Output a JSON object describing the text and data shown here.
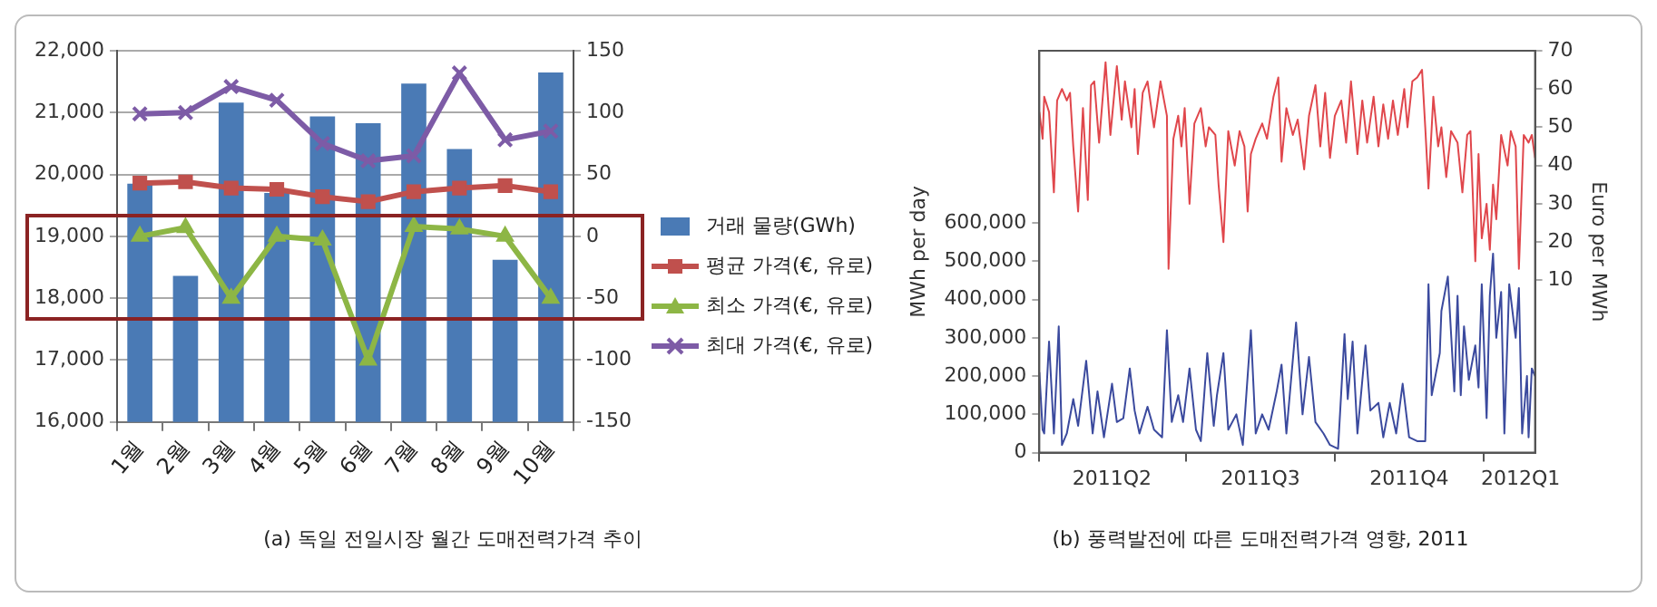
{
  "chart_data": [
    {
      "type": "bar",
      "categories": [
        "1월",
        "2월",
        "3월",
        "4월",
        "5월",
        "6월",
        "7월",
        "8월",
        "9월",
        "10월"
      ],
      "series": [
        {
          "name": "거래 물량(GWh)",
          "type": "bar",
          "color": "#4a7ab5",
          "values": [
            19850,
            18360,
            21160,
            19700,
            20940,
            20830,
            21470,
            20410,
            18620,
            21650
          ]
        },
        {
          "name": "평균 가격(€, 유로)",
          "type": "line",
          "axis": "y2",
          "marker": "square",
          "color": "#c0504d",
          "values": [
            43,
            44,
            39,
            38,
            32,
            28,
            36,
            39,
            41,
            36
          ]
        },
        {
          "name": "최소 가격(€, 유로)",
          "type": "line",
          "axis": "y2",
          "marker": "triangle",
          "color": "#8db645",
          "values": [
            0,
            7,
            -50,
            0,
            -3,
            -100,
            8,
            6,
            0,
            -50
          ]
        },
        {
          "name": "최대 가격(€, 유로)",
          "type": "line",
          "axis": "y2",
          "marker": "cross",
          "color": "#7d5ba6",
          "values": [
            99,
            100,
            121,
            110,
            75,
            61,
            65,
            132,
            78,
            85
          ]
        }
      ],
      "ylim": [
        16000,
        22000
      ],
      "yticks": [
        {
          "value": 16000,
          "label": "16,000"
        },
        {
          "value": 17000,
          "label": "17,000"
        },
        {
          "value": 18000,
          "label": "18,000"
        },
        {
          "value": 19000,
          "label": "19,000"
        },
        {
          "value": 20000,
          "label": "20,000"
        },
        {
          "value": 21000,
          "label": "21,000"
        },
        {
          "value": 22000,
          "label": "22,000"
        }
      ],
      "y2lim": [
        -150,
        150
      ],
      "y2ticks": [
        -150,
        -100,
        -50,
        0,
        50,
        100,
        150
      ],
      "grid": "y",
      "legend": "right",
      "annotations": [
        "(a) 독일 전일시장 월간 도매전력가격 추이"
      ]
    },
    {
      "type": "line",
      "ylabel": "MWh per day",
      "y2label": "Euro per MWh",
      "marker": "none",
      "grid": false,
      "legend": false,
      "xlim": [
        "2011-04-01",
        "2012-02-02"
      ],
      "xticks": [
        {
          "value": "2011-04-01",
          "label": null
        },
        {
          "value": "2011-05-16",
          "label": "2011Q2"
        },
        {
          "value": "2011-07-01",
          "label": null
        },
        {
          "value": "2011-08-16",
          "label": "2011Q3"
        },
        {
          "value": "2011-10-01",
          "label": null
        },
        {
          "value": "2011-11-16",
          "label": "2011Q4"
        },
        {
          "value": "2012-01-01",
          "label": null
        },
        {
          "value": "2012-01-24",
          "label": "2012Q1"
        }
      ],
      "ylim": [
        0,
        1050000
      ],
      "yticks": [
        {
          "value": 0,
          "label": "0"
        },
        {
          "value": 100000,
          "label": "100,000"
        },
        {
          "value": 200000,
          "label": "200,000"
        },
        {
          "value": 300000,
          "label": "300,000"
        },
        {
          "value": 400000,
          "label": "400,000"
        },
        {
          "value": 500000,
          "label": "500,000"
        },
        {
          "value": 600000,
          "label": "600,000"
        }
      ],
      "y2lim": [
        -35,
        70
      ],
      "y2ticks": [
        10,
        20,
        30,
        40,
        50,
        60,
        70
      ],
      "series": [
        {
          "axis": "y2",
          "color": "#e0474c",
          "x": [
            "2011-04-01",
            "2011-04-03",
            "2011-04-04",
            "2011-04-07",
            "2011-04-10",
            "2011-04-12",
            "2011-04-15",
            "2011-04-18",
            "2011-04-20",
            "2011-04-22",
            "2011-04-25",
            "2011-04-28",
            "2011-05-01",
            "2011-05-03",
            "2011-05-05",
            "2011-05-08",
            "2011-05-12",
            "2011-05-15",
            "2011-05-19",
            "2011-05-22",
            "2011-05-24",
            "2011-05-28",
            "2011-05-30",
            "2011-06-01",
            "2011-06-04",
            "2011-06-07",
            "2011-06-11",
            "2011-06-15",
            "2011-06-19",
            "2011-06-20",
            "2011-06-23",
            "2011-06-26",
            "2011-06-28",
            "2011-06-30",
            "2011-07-03",
            "2011-07-06",
            "2011-07-10",
            "2011-07-13",
            "2011-07-15",
            "2011-07-19",
            "2011-07-21",
            "2011-07-24",
            "2011-07-27",
            "2011-07-31",
            "2011-08-03",
            "2011-08-06",
            "2011-08-08",
            "2011-08-10",
            "2011-08-13",
            "2011-08-17",
            "2011-08-20",
            "2011-08-24",
            "2011-08-27",
            "2011-08-29",
            "2011-09-01",
            "2011-09-05",
            "2011-09-08",
            "2011-09-12",
            "2011-09-15",
            "2011-09-19",
            "2011-09-22",
            "2011-09-25",
            "2011-09-28",
            "2011-10-01",
            "2011-10-05",
            "2011-10-08",
            "2011-10-11",
            "2011-10-15",
            "2011-10-18",
            "2011-10-21",
            "2011-10-25",
            "2011-10-28",
            "2011-10-31",
            "2011-11-03",
            "2011-11-06",
            "2011-11-09",
            "2011-11-13",
            "2011-11-15",
            "2011-11-18",
            "2011-11-21",
            "2011-11-24",
            "2011-11-26",
            "2011-11-28",
            "2011-12-01",
            "2011-12-04",
            "2011-12-06",
            "2011-12-09",
            "2011-12-12",
            "2011-12-16",
            "2011-12-19",
            "2011-12-22",
            "2011-12-24",
            "2011-12-27",
            "2011-12-29",
            "2011-12-31",
            "2012-01-03",
            "2012-01-05",
            "2012-01-07",
            "2012-01-09",
            "2012-01-12",
            "2012-01-16",
            "2012-01-18",
            "2012-01-21",
            "2012-01-23",
            "2012-01-26",
            "2012-01-29",
            "2012-01-31",
            "2012-02-02"
          ],
          "values": [
            54,
            47,
            58,
            54,
            33,
            57,
            60,
            57,
            59,
            45,
            28,
            55,
            31,
            61,
            62,
            46,
            67,
            48,
            66,
            52,
            62,
            50,
            60,
            43,
            59,
            62,
            50,
            62,
            53,
            13,
            47,
            53,
            45,
            55,
            30,
            51,
            55,
            45,
            50,
            48,
            35,
            20,
            49,
            40,
            49,
            45,
            28,
            43,
            47,
            51,
            47,
            58,
            63,
            41,
            55,
            48,
            52,
            39,
            53,
            61,
            45,
            59,
            42,
            53,
            57,
            46,
            62,
            43,
            57,
            46,
            58,
            45,
            56,
            47,
            57,
            48,
            60,
            50,
            62,
            63,
            65,
            50,
            34,
            58,
            45,
            50,
            37,
            49,
            46,
            33,
            48,
            49,
            15,
            43,
            21,
            30,
            18,
            35,
            26,
            48,
            40,
            49,
            45,
            13,
            48,
            46,
            48,
            42
          ]
        },
        {
          "color": "#3b4a9e",
          "x": [
            "2011-04-01",
            "2011-04-03",
            "2011-04-04",
            "2011-04-07",
            "2011-04-10",
            "2011-04-13",
            "2011-04-15",
            "2011-04-18",
            "2011-04-22",
            "2011-04-25",
            "2011-04-30",
            "2011-05-04",
            "2011-05-07",
            "2011-05-11",
            "2011-05-16",
            "2011-05-19",
            "2011-05-23",
            "2011-05-27",
            "2011-05-30",
            "2011-06-02",
            "2011-06-07",
            "2011-06-11",
            "2011-06-16",
            "2011-06-19",
            "2011-06-22",
            "2011-06-26",
            "2011-06-29",
            "2011-07-03",
            "2011-07-07",
            "2011-07-10",
            "2011-07-14",
            "2011-07-18",
            "2011-07-20",
            "2011-07-24",
            "2011-07-27",
            "2011-08-01",
            "2011-08-05",
            "2011-08-10",
            "2011-08-13",
            "2011-08-17",
            "2011-08-21",
            "2011-08-26",
            "2011-08-29",
            "2011-09-01",
            "2011-09-07",
            "2011-09-11",
            "2011-09-15",
            "2011-09-19",
            "2011-09-24",
            "2011-09-28",
            "2011-10-03",
            "2011-10-07",
            "2011-10-09",
            "2011-10-12",
            "2011-10-15",
            "2011-10-20",
            "2011-10-23",
            "2011-10-28",
            "2011-10-31",
            "2011-11-04",
            "2011-11-08",
            "2011-11-12",
            "2011-11-16",
            "2011-11-21",
            "2011-11-26",
            "2011-11-28",
            "2011-11-30",
            "2011-12-05",
            "2011-12-06",
            "2011-12-10",
            "2011-12-14",
            "2011-12-16",
            "2011-12-18",
            "2011-12-20",
            "2011-12-23",
            "2011-12-27",
            "2011-12-29",
            "2011-12-31",
            "2012-01-03",
            "2012-01-05",
            "2012-01-07",
            "2012-01-09",
            "2012-01-12",
            "2012-01-14",
            "2012-01-17",
            "2012-01-21",
            "2012-01-23",
            "2012-01-25",
            "2012-01-28",
            "2012-01-29",
            "2012-01-31",
            "2012-02-02"
          ],
          "values": [
            210000,
            60000,
            50000,
            290000,
            50000,
            330000,
            20000,
            50000,
            140000,
            70000,
            240000,
            50000,
            160000,
            40000,
            180000,
            80000,
            90000,
            220000,
            110000,
            50000,
            120000,
            60000,
            40000,
            320000,
            80000,
            150000,
            80000,
            220000,
            60000,
            30000,
            260000,
            70000,
            150000,
            260000,
            60000,
            100000,
            20000,
            320000,
            50000,
            100000,
            60000,
            160000,
            230000,
            50000,
            340000,
            100000,
            250000,
            80000,
            50000,
            20000,
            10000,
            310000,
            140000,
            290000,
            50000,
            280000,
            110000,
            130000,
            40000,
            130000,
            50000,
            180000,
            40000,
            30000,
            30000,
            440000,
            150000,
            260000,
            370000,
            460000,
            160000,
            410000,
            150000,
            330000,
            190000,
            280000,
            170000,
            440000,
            90000,
            410000,
            520000,
            300000,
            420000,
            50000,
            440000,
            300000,
            430000,
            50000,
            200000,
            40000,
            220000,
            200000
          ]
        }
      ],
      "annotations": [
        "(b) 풍력발전에 따른 도매전력가격 영향, 2011"
      ]
    }
  ]
}
